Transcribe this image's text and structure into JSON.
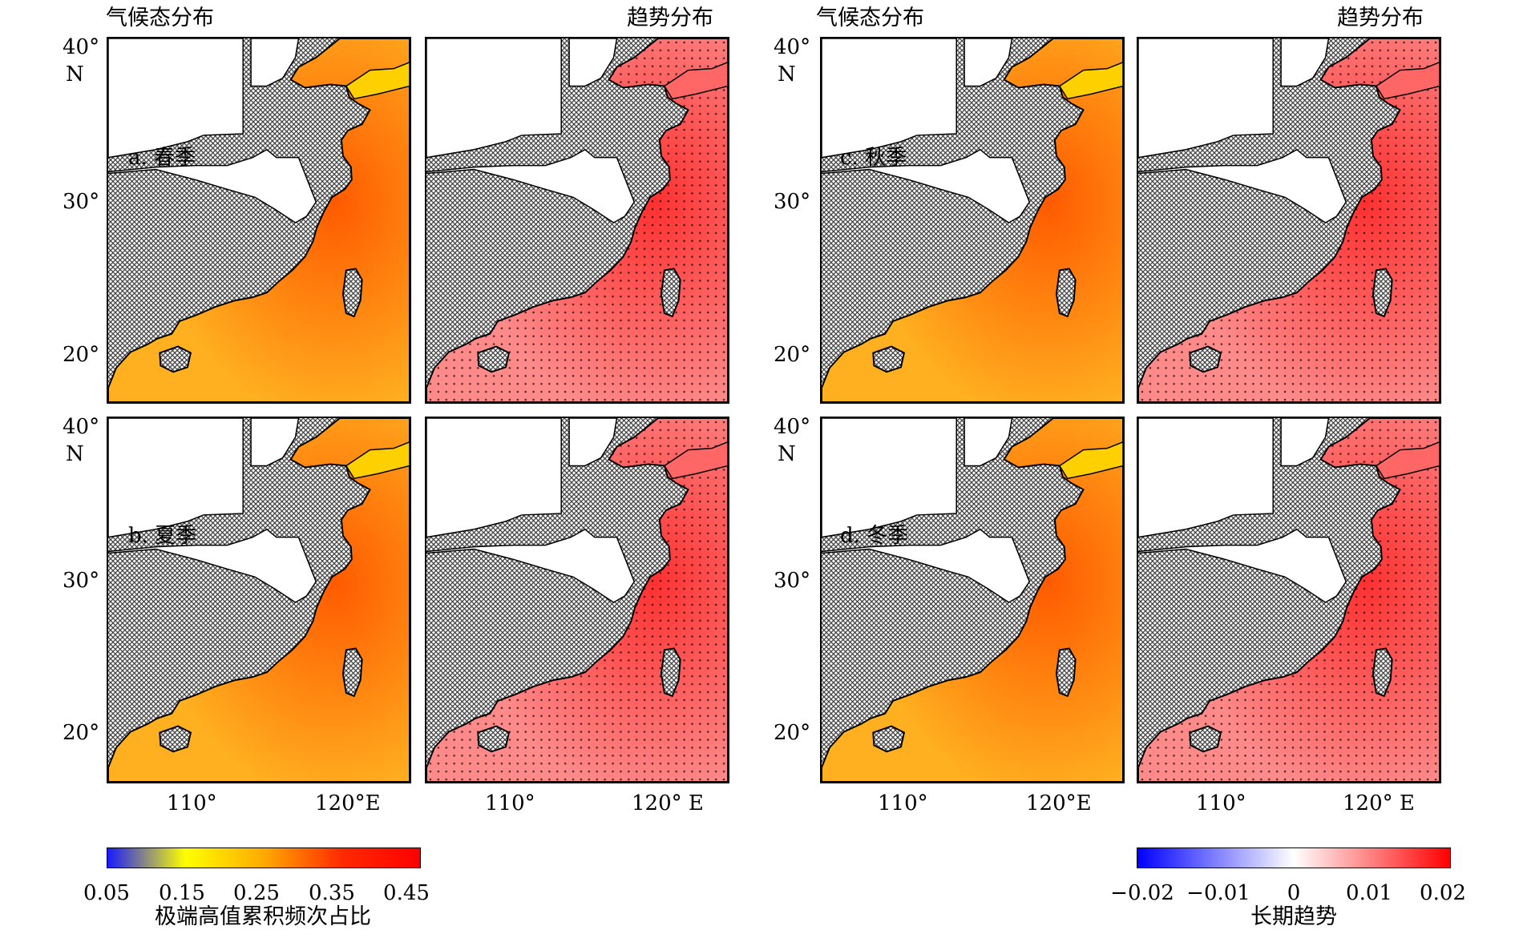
{
  "headers": {
    "left_clim": "气候态分布",
    "left_trend": "趋势分布",
    "right_clim": "气候态分布",
    "right_trend": "趋势分布"
  },
  "panels": [
    {
      "label": "a. 春季"
    },
    {
      "label": "b. 夏季"
    },
    {
      "label": "c. 秋季"
    },
    {
      "label": "d. 冬季"
    }
  ],
  "lat_ticks": {
    "t40": "40°",
    "n": "N",
    "t30": "30°",
    "t20": "20°"
  },
  "lon_ticks": {
    "clim_110": "110°",
    "clim_120": "120°E",
    "trend_110": "110°",
    "trend_120": "120° E"
  },
  "colorbar_left": {
    "ticks": [
      "0.05",
      "0.15",
      "0.25",
      "0.35",
      "0.45"
    ],
    "title": "极端高值累积频次占比",
    "colors": [
      "#1a1aff",
      "#ffff00",
      "#ffaa00",
      "#ff2a00",
      "#ff0000"
    ]
  },
  "colorbar_right": {
    "ticks": [
      "−0.02",
      "−0.01",
      "0",
      "0.01",
      "0.02"
    ],
    "title": "长期趋势",
    "colors": [
      "#0000ff",
      "#ffffff",
      "#ff0000"
    ]
  },
  "colors": {
    "land_hatch": "#3a3a3a",
    "clim_sea": "#ffb020",
    "trend_sea": "#ff8a8a"
  }
}
